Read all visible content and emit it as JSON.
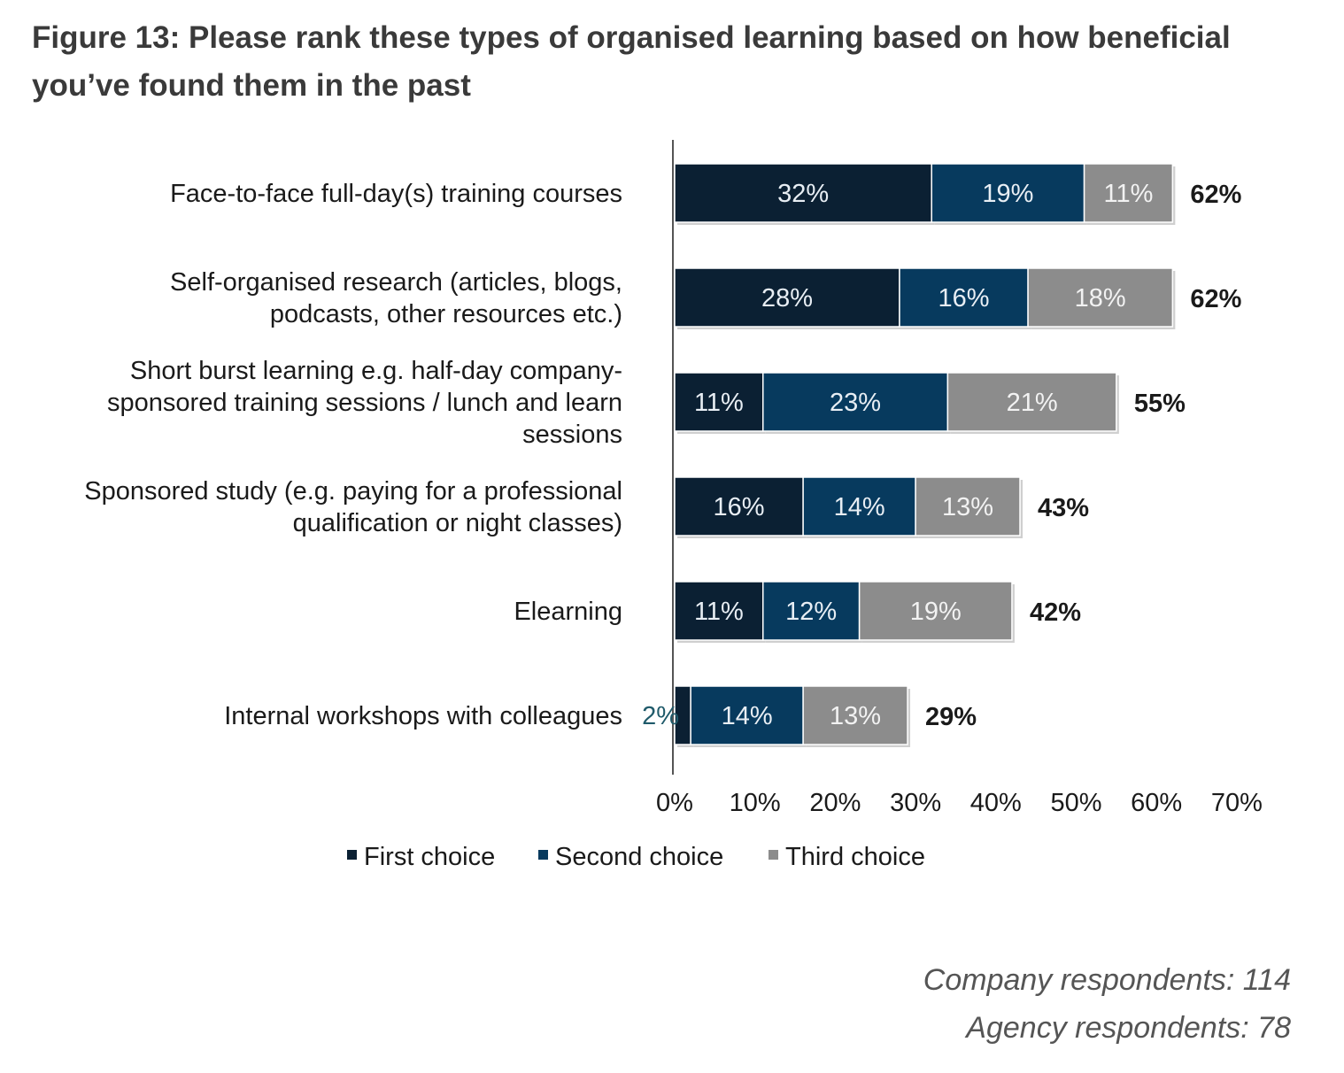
{
  "title": "Figure 13: Please rank these types of organised learning based on how beneficial you’ve found them in the past",
  "notes": [
    "Company respondents: 114",
    "Agency respondents: 78"
  ],
  "colors": {
    "first": "#0b2033",
    "second": "#073a5e",
    "third": "#8c8c8c",
    "text": "#1a1a1a"
  },
  "chart_data": {
    "type": "bar",
    "orientation": "horizontal",
    "stacked": true,
    "categories": [
      [
        "Face-to-face full-day(s) training courses"
      ],
      [
        "Self-organised research (articles, blogs,",
        "podcasts, other resources etc.)"
      ],
      [
        "Short burst learning e.g. half-day company-",
        "sponsored training sessions / lunch and learn",
        "sessions"
      ],
      [
        "Sponsored study (e.g. paying for a professional",
        "qualification or night classes)"
      ],
      [
        "Elearning"
      ],
      [
        "Internal workshops with colleagues"
      ]
    ],
    "series": [
      {
        "name": "First choice",
        "values": [
          32,
          28,
          11,
          16,
          11,
          2
        ]
      },
      {
        "name": "Second choice",
        "values": [
          19,
          16,
          23,
          14,
          12,
          14
        ]
      },
      {
        "name": "Third choice",
        "values": [
          11,
          18,
          21,
          13,
          19,
          13
        ]
      }
    ],
    "totals": [
      62,
      62,
      55,
      43,
      42,
      29
    ],
    "xlim": [
      0,
      70
    ],
    "xticks": [
      "0%",
      "10%",
      "20%",
      "30%",
      "40%",
      "50%",
      "60%",
      "70%"
    ],
    "value_suffix": "%",
    "legend_position": "bottom",
    "grid": false
  }
}
